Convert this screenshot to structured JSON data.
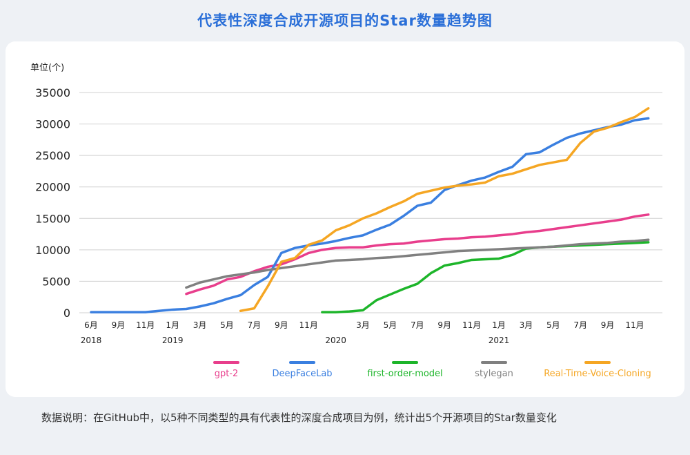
{
  "chart_data": {
    "type": "line",
    "title": "代表性深度合成开源项目的Star数量趋势图",
    "y_unit_label": "单位(个)",
    "note": "数据说明：在GitHub中，以5种不同类型的具有代表性的深度合成项目为例，统计出5个开源项目的Star数量变化",
    "categories": [
      "6月",
      null,
      "9月",
      null,
      "11月",
      null,
      "1月",
      null,
      "3月",
      null,
      "5月",
      null,
      "7月",
      null,
      "9月",
      null,
      "11月",
      null,
      null,
      null,
      "3月",
      null,
      "5月",
      null,
      "7月",
      null,
      "9月",
      null,
      "11月",
      null,
      "1月",
      null,
      "3月",
      null,
      "5月",
      null,
      "7月",
      null,
      "9月",
      null,
      "11月",
      null
    ],
    "year_labels": [
      "2018",
      null,
      null,
      null,
      null,
      null,
      "2019",
      null,
      null,
      null,
      null,
      null,
      null,
      null,
      null,
      null,
      null,
      null,
      "2020",
      null,
      null,
      null,
      null,
      null,
      null,
      null,
      null,
      null,
      null,
      null,
      "2021",
      null,
      null,
      null,
      null,
      null,
      null,
      null,
      null,
      null,
      null,
      null
    ],
    "ylim": [
      0,
      35000
    ],
    "yticks": [
      0,
      5000,
      10000,
      15000,
      20000,
      25000,
      30000,
      35000
    ],
    "grid": true,
    "series": [
      {
        "name": "gpt-2",
        "color": "#e83e8c",
        "values": [
          null,
          null,
          null,
          null,
          null,
          null,
          null,
          3000,
          3700,
          4300,
          5300,
          5700,
          6600,
          7300,
          7700,
          8500,
          9500,
          10000,
          10300,
          10400,
          10400,
          10700,
          10900,
          11000,
          11300,
          11500,
          11700,
          11800,
          12000,
          12100,
          12300,
          12500,
          12800,
          13000,
          13300,
          13600,
          13900,
          14200,
          14500,
          14800,
          15300,
          15600
        ]
      },
      {
        "name": "DeepFaceLab",
        "color": "#3a7fe0",
        "values": [
          100,
          100,
          100,
          100,
          100,
          300,
          500,
          600,
          1000,
          1500,
          2200,
          2800,
          4400,
          5700,
          9500,
          10300,
          10700,
          11000,
          11400,
          11900,
          12300,
          13200,
          14000,
          15400,
          17000,
          17500,
          19500,
          20300,
          21000,
          21500,
          22400,
          23200,
          25200,
          25500,
          26700,
          27800,
          28500,
          29000,
          29500,
          29900,
          30600,
          30900
        ]
      },
      {
        "name": "first-order-model",
        "color": "#1db52a",
        "values": [
          null,
          null,
          null,
          null,
          null,
          null,
          null,
          null,
          null,
          null,
          null,
          null,
          null,
          null,
          null,
          null,
          null,
          100,
          100,
          200,
          400,
          2000,
          2900,
          3800,
          4600,
          6300,
          7500,
          7900,
          8400,
          8500,
          8600,
          9200,
          10200,
          10400,
          10500,
          10600,
          10700,
          10800,
          10900,
          11000,
          11100,
          11200
        ]
      },
      {
        "name": "stylegan",
        "color": "#808080",
        "values": [
          null,
          null,
          null,
          null,
          null,
          null,
          null,
          4000,
          4800,
          5300,
          5800,
          6100,
          6400,
          6800,
          7100,
          7400,
          7700,
          8000,
          8300,
          8400,
          8500,
          8700,
          8800,
          9000,
          9200,
          9400,
          9600,
          9800,
          9900,
          10000,
          10100,
          10200,
          10300,
          10400,
          10500,
          10700,
          10900,
          11000,
          11100,
          11300,
          11400,
          11600
        ]
      },
      {
        "name": "Real-Time-Voice-Cloning",
        "color": "#f5a623",
        "values": [
          null,
          null,
          null,
          null,
          null,
          null,
          null,
          null,
          null,
          null,
          null,
          300,
          700,
          4200,
          8100,
          8700,
          10800,
          11500,
          13100,
          13900,
          15000,
          15800,
          16800,
          17700,
          18900,
          19400,
          19900,
          20200,
          20400,
          20700,
          21700,
          22100,
          22800,
          23500,
          23900,
          24300,
          27000,
          28800,
          29400,
          30300,
          31100,
          32500
        ]
      }
    ]
  }
}
